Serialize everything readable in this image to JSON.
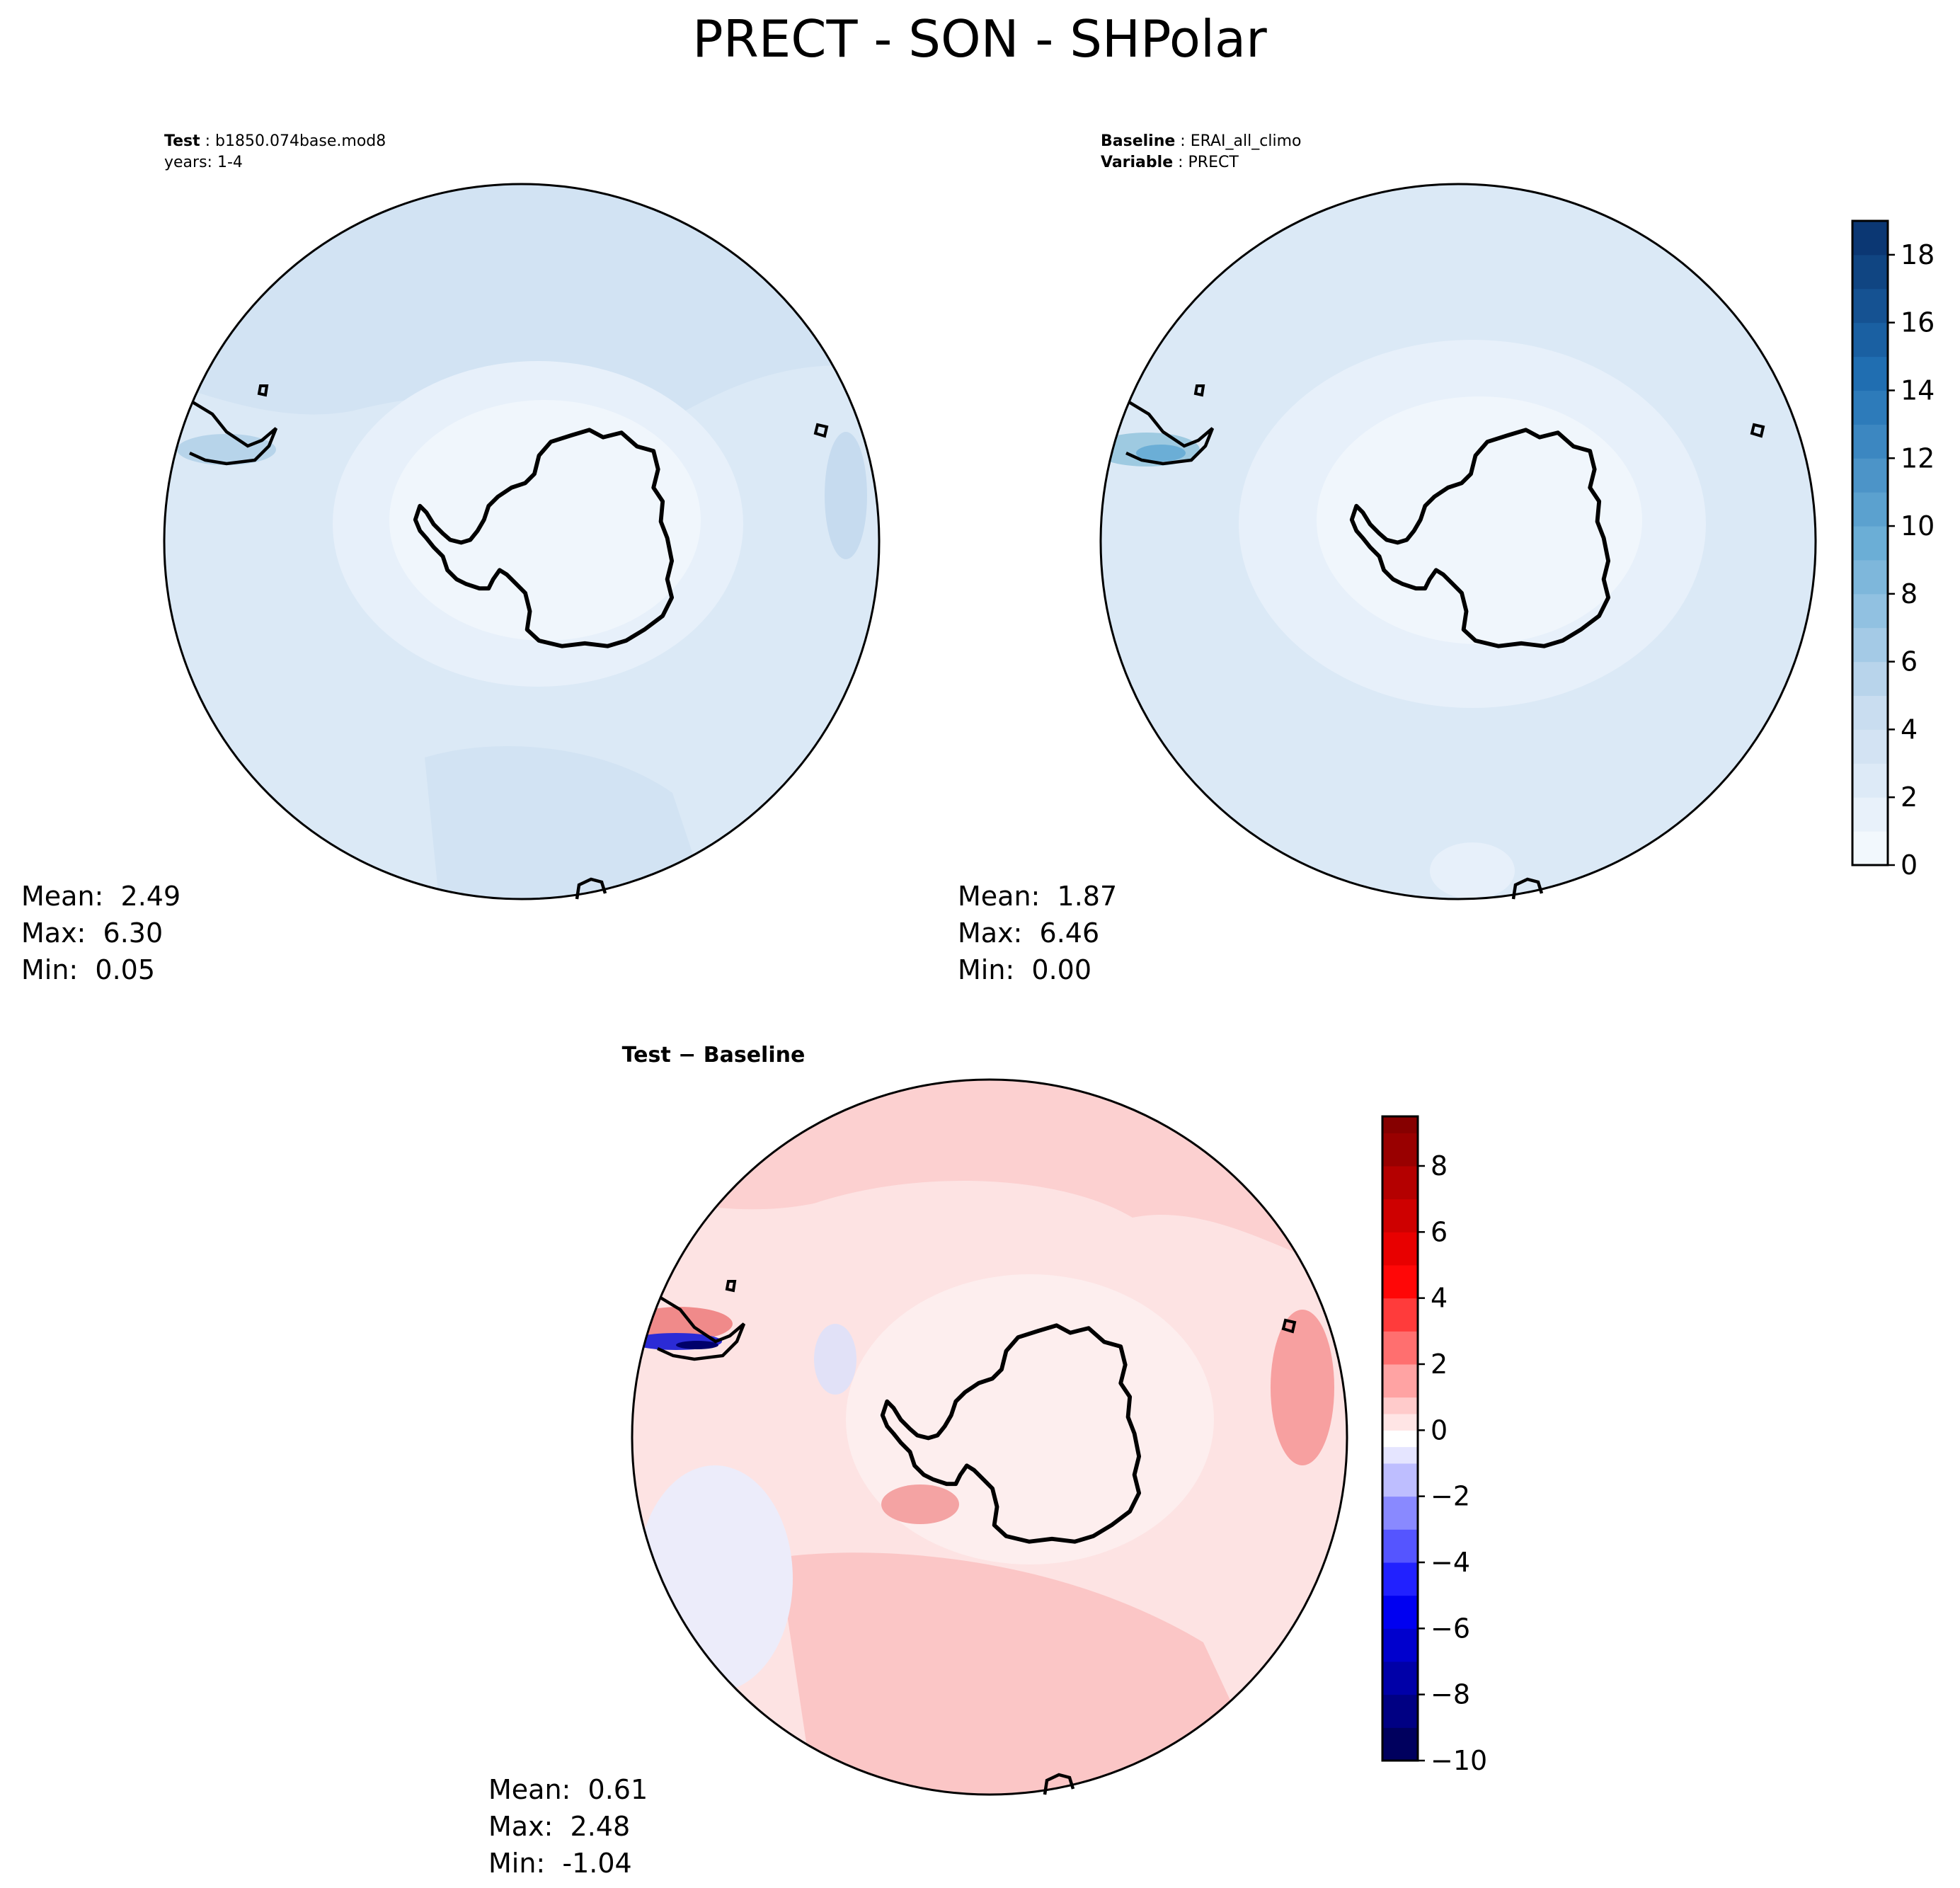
{
  "chart_data": {
    "type": "heatmap",
    "title": "PRECT - SON - SHPolar",
    "projection": "south-polar-stereographic",
    "panels": [
      {
        "id": "test",
        "header_label": "Test",
        "header_value": "b1850.074base.mod8",
        "header_line2": "years: 1-4",
        "stats": {
          "mean": "2.49",
          "max": "6.30",
          "min": "0.05"
        },
        "colormap": "Blues",
        "clim": [
          0,
          19
        ]
      },
      {
        "id": "baseline",
        "header_label": "Baseline",
        "header_value": "ERAI_all_climo",
        "header_label2": "Variable",
        "header_value2": "PRECT",
        "stats": {
          "mean": "1.87",
          "max": "6.46",
          "min": "0.00"
        },
        "colormap": "Blues",
        "clim": [
          0,
          19
        ],
        "colorbar": {
          "range": [
            0,
            19
          ],
          "ticks": [
            "0",
            "2",
            "4",
            "6",
            "8",
            "10",
            "12",
            "14",
            "16",
            "18"
          ],
          "levels": [
            0,
            1,
            2,
            3,
            4,
            5,
            6,
            7,
            8,
            9,
            10,
            11,
            12,
            13,
            14,
            15,
            16,
            17,
            18,
            19
          ]
        }
      },
      {
        "id": "difference",
        "header_label": "Test − Baseline",
        "stats": {
          "mean": "0.61",
          "max": "2.48",
          "min": "-1.04"
        },
        "colormap": "seismic",
        "clim": [
          -10,
          9.5
        ],
        "colorbar": {
          "range": [
            -10,
            9.5
          ],
          "ticks": [
            "8",
            "6",
            "4",
            "2",
            "0",
            "−2",
            "−4",
            "−6",
            "−8",
            "−10"
          ],
          "levels": [
            -10,
            -9,
            -8,
            -7,
            -6,
            -5,
            -4,
            -3,
            -2,
            -1,
            -0.5,
            0,
            0.5,
            1,
            2,
            3,
            4,
            5,
            6,
            7,
            8,
            9,
            9.5
          ]
        }
      }
    ]
  },
  "labels": {
    "mean": "Mean:",
    "max": "Max:",
    "min": "Min:"
  }
}
